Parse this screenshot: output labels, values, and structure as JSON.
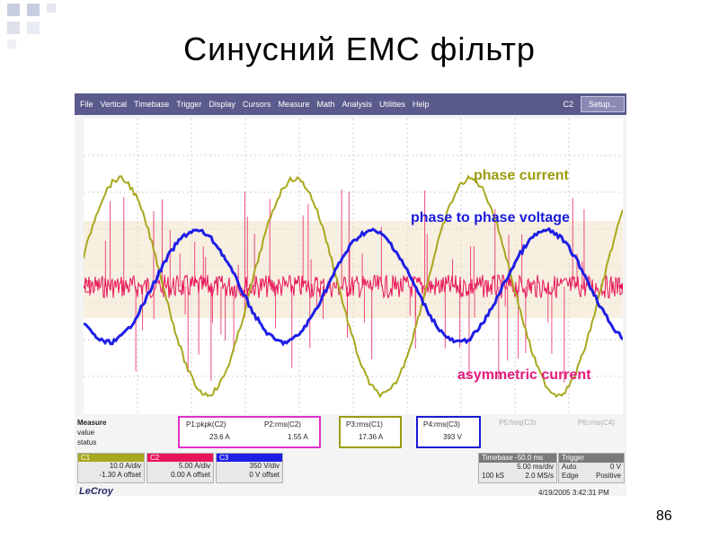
{
  "slide": {
    "title": "Синусний ЕМС фільтр",
    "page_number": "86"
  },
  "scope": {
    "menu": [
      "File",
      "Vertical",
      "Timebase",
      "Trigger",
      "Display",
      "Cursors",
      "Measure",
      "Math",
      "Analysis",
      "Utilities",
      "Help"
    ],
    "channel_indicator": "C2",
    "setup_button": "Setup...",
    "labels": {
      "phase_current": "phase current",
      "phase_voltage": "phase to phase voltage",
      "asymmetric_current": "asymmetric current"
    },
    "colors": {
      "phase_current": "#a8a81e",
      "phase_voltage": "#1e1ee6",
      "asymmetric_current": "#e8145a",
      "label_blue": "#1a1ad6",
      "label_magenta": "#e6197d",
      "label_olive": "#9c9c10",
      "menubar": "#5a5a8c"
    },
    "measure": {
      "header": "Measure",
      "value_label": "value",
      "status_label": "status",
      "p1": {
        "name": "P1:pkpk(C2)",
        "value": "23.6 A"
      },
      "p2": {
        "name": "P2:rms(C2)",
        "value": "1.55 A"
      },
      "p3": {
        "name": "P3:rms(C1)",
        "value": "17.36 A"
      },
      "p4": {
        "name": "P4:rms(C3)",
        "value": "393 V"
      },
      "p5": {
        "name": "P5:freq(C3)"
      },
      "p6": {
        "name": "P6:rms(C4)"
      }
    },
    "channels": {
      "c1": {
        "name": "C1",
        "vdiv": "10.0 A/div",
        "offset": "-1.30 A offset"
      },
      "c2": {
        "name": "C2",
        "vdiv": "5.00 A/div",
        "offset": "0.00 A offset"
      },
      "c3": {
        "name": "C3",
        "vdiv": "350 V/div",
        "offset": "0 V offset"
      }
    },
    "timebase": {
      "header": "Timebase -50.0 ms",
      "rate": "5.00 ms/div",
      "samples": "100 kS",
      "srate": "2.0 MS/s"
    },
    "trigger": {
      "header": "Trigger",
      "mode": "Auto",
      "level": "0 V",
      "type": "Edge",
      "slope": "Positive"
    },
    "brand": "LeCroy",
    "datetime": "4/19/2005 3:42:31 PM"
  }
}
